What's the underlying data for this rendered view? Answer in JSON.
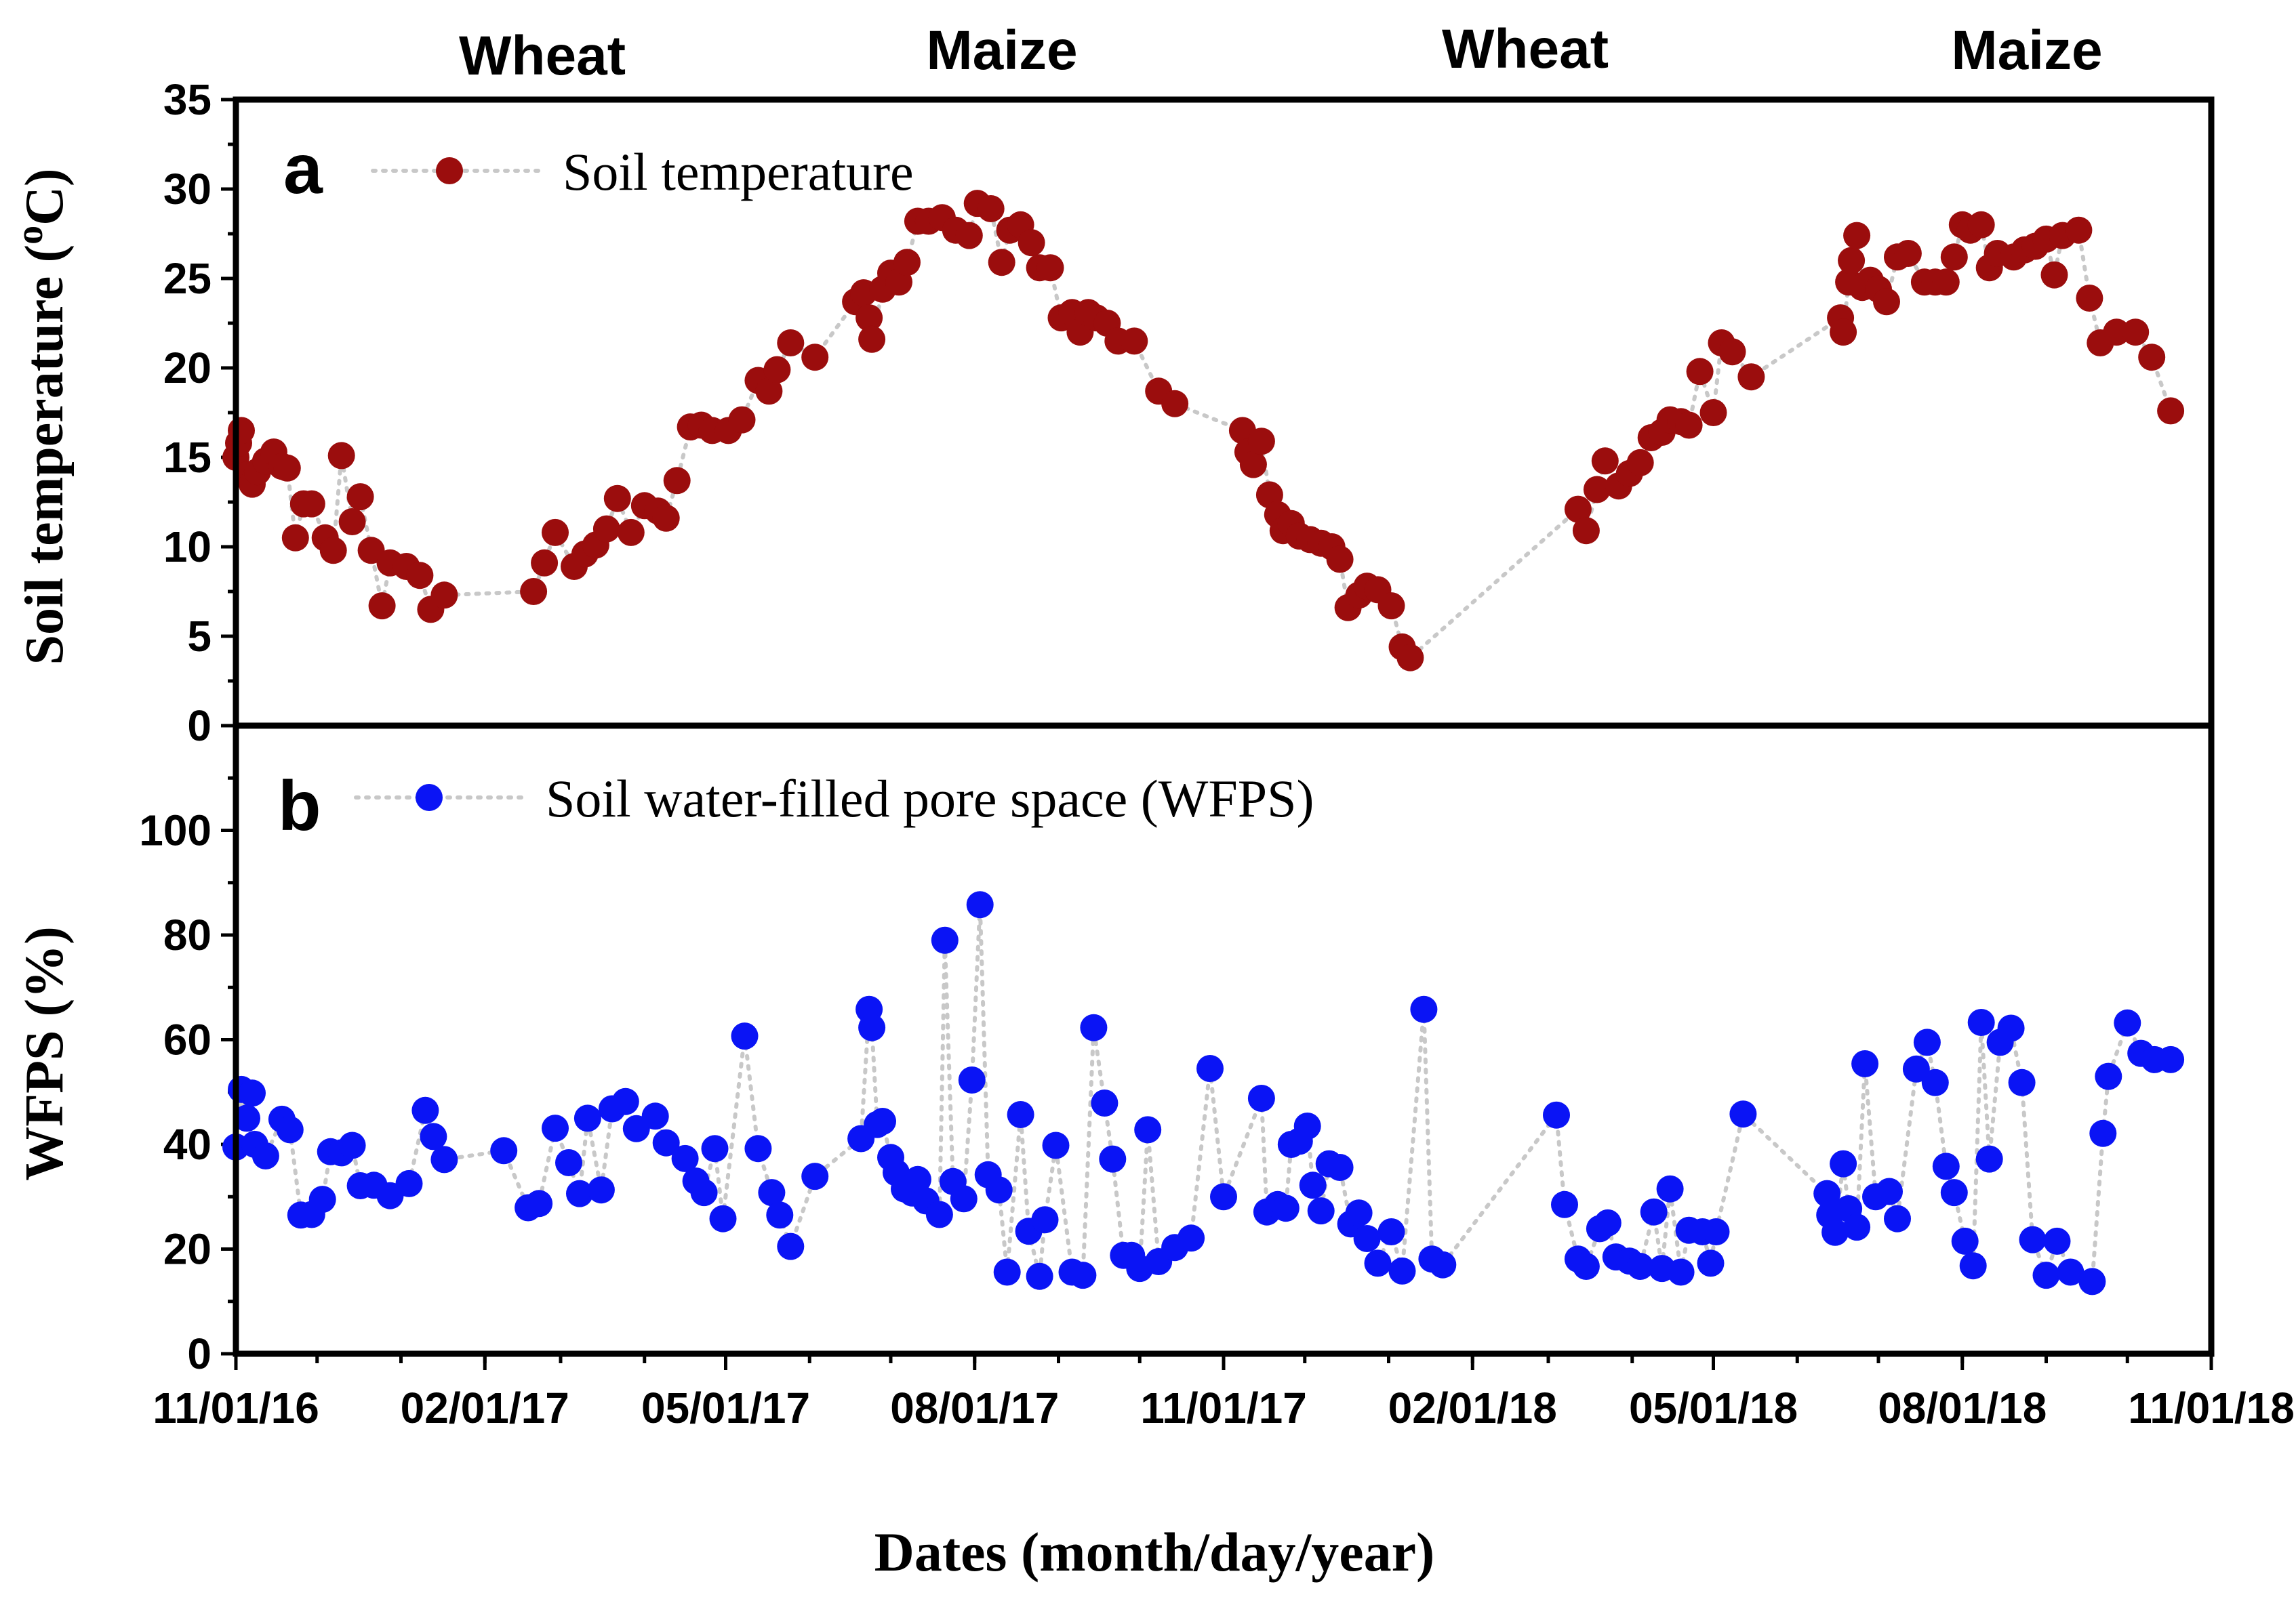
{
  "crop_labels": [
    "Wheat",
    "Maize",
    "Wheat",
    "Maize"
  ],
  "x_ticks": [
    "11/01/16",
    "02/01/17",
    "05/01/17",
    "08/01/17",
    "11/01/17",
    "02/01/18",
    "05/01/18",
    "08/01/18",
    "11/01/18"
  ],
  "x_axis_label": "Dates (month/day/year)",
  "chart_data": [
    {
      "panel": "a",
      "type": "scatter",
      "series": [
        {
          "name": "Soil temperature",
          "color": "#9b0d0d"
        }
      ],
      "ylabel": "Soil temperature (oC)",
      "ylabel_main": "Soil temperature (",
      "ylabel_sup": "o",
      "ylabel_end": "C)",
      "ylim": [
        0,
        35
      ],
      "yticks": [
        "0",
        "5",
        "10",
        "15",
        "20",
        "25",
        "30",
        "35"
      ],
      "xlim": [
        "2016-11-01",
        "2018-11-01"
      ],
      "line_style": "dotted grey connector",
      "points": [
        [
          "2016-11-01",
          15.0
        ],
        [
          "2016-11-02",
          15.8
        ],
        [
          "2016-11-03",
          16.5
        ],
        [
          "2016-11-05",
          14.0
        ],
        [
          "2016-11-07",
          13.5
        ],
        [
          "2016-11-09",
          14.2
        ],
        [
          "2016-11-12",
          14.8
        ],
        [
          "2016-11-15",
          15.3
        ],
        [
          "2016-11-18",
          14.5
        ],
        [
          "2016-11-20",
          14.4
        ],
        [
          "2016-11-23",
          10.5
        ],
        [
          "2016-11-26",
          12.4
        ],
        [
          "2016-11-29",
          12.4
        ],
        [
          "2016-12-04",
          10.5
        ],
        [
          "2016-12-07",
          9.8
        ],
        [
          "2016-12-10",
          15.1
        ],
        [
          "2016-12-14",
          11.4
        ],
        [
          "2016-12-17",
          12.8
        ],
        [
          "2016-12-21",
          9.8
        ],
        [
          "2016-12-25",
          6.7
        ],
        [
          "2016-12-28",
          9.1
        ],
        [
          "2017-01-03",
          8.9
        ],
        [
          "2017-01-08",
          8.4
        ],
        [
          "2017-01-12",
          6.5
        ],
        [
          "2017-01-17",
          7.3
        ],
        [
          "2017-02-19",
          7.5
        ],
        [
          "2017-02-23",
          9.1
        ],
        [
          "2017-02-27",
          10.8
        ],
        [
          "2017-03-06",
          8.9
        ],
        [
          "2017-03-10",
          9.6
        ],
        [
          "2017-03-14",
          10.1
        ],
        [
          "2017-03-18",
          11.0
        ],
        [
          "2017-03-22",
          12.7
        ],
        [
          "2017-03-27",
          10.8
        ],
        [
          "2017-04-01",
          12.3
        ],
        [
          "2017-04-06",
          12.0
        ],
        [
          "2017-04-09",
          11.6
        ],
        [
          "2017-04-13",
          13.7
        ],
        [
          "2017-04-18",
          16.7
        ],
        [
          "2017-04-22",
          16.8
        ],
        [
          "2017-04-26",
          16.5
        ],
        [
          "2017-05-02",
          16.5
        ],
        [
          "2017-05-07",
          17.1
        ],
        [
          "2017-05-13",
          19.3
        ],
        [
          "2017-05-17",
          18.7
        ],
        [
          "2017-05-20",
          19.9
        ],
        [
          "2017-05-25",
          21.4
        ],
        [
          "2017-06-03",
          20.6
        ],
        [
          "2017-06-18",
          23.7
        ],
        [
          "2017-06-21",
          24.2
        ],
        [
          "2017-06-23",
          22.8
        ],
        [
          "2017-06-24",
          21.6
        ],
        [
          "2017-06-28",
          24.4
        ],
        [
          "2017-07-01",
          25.3
        ],
        [
          "2017-07-04",
          24.8
        ],
        [
          "2017-07-07",
          25.9
        ],
        [
          "2017-07-11",
          28.2
        ],
        [
          "2017-07-15",
          28.2
        ],
        [
          "2017-07-20",
          28.4
        ],
        [
          "2017-07-25",
          27.7
        ],
        [
          "2017-07-30",
          27.4
        ],
        [
          "2017-08-02",
          29.2
        ],
        [
          "2017-08-07",
          28.9
        ],
        [
          "2017-08-11",
          25.9
        ],
        [
          "2017-08-14",
          27.7
        ],
        [
          "2017-08-18",
          28.0
        ],
        [
          "2017-08-22",
          27.0
        ],
        [
          "2017-08-25",
          25.6
        ],
        [
          "2017-08-29",
          25.6
        ],
        [
          "2017-09-02",
          22.8
        ],
        [
          "2017-09-06",
          23.1
        ],
        [
          "2017-09-09",
          22.0
        ],
        [
          "2017-09-12",
          23.1
        ],
        [
          "2017-09-15",
          22.8
        ],
        [
          "2017-09-19",
          22.5
        ],
        [
          "2017-09-23",
          21.5
        ],
        [
          "2017-09-29",
          21.5
        ],
        [
          "2017-10-08",
          18.7
        ],
        [
          "2017-10-14",
          18.0
        ],
        [
          "2017-11-08",
          16.5
        ],
        [
          "2017-11-10",
          15.3
        ],
        [
          "2017-11-12",
          14.6
        ],
        [
          "2017-11-15",
          15.9
        ],
        [
          "2017-11-18",
          12.9
        ],
        [
          "2017-11-21",
          11.8
        ],
        [
          "2017-11-23",
          10.9
        ],
        [
          "2017-11-26",
          11.3
        ],
        [
          "2017-11-29",
          10.6
        ],
        [
          "2017-12-03",
          10.4
        ],
        [
          "2017-12-07",
          10.2
        ],
        [
          "2017-12-11",
          10.0
        ],
        [
          "2017-12-14",
          9.3
        ],
        [
          "2017-12-17",
          6.6
        ],
        [
          "2017-12-21",
          7.3
        ],
        [
          "2017-12-24",
          7.8
        ],
        [
          "2017-12-28",
          7.6
        ],
        [
          "2018-01-02",
          6.7
        ],
        [
          "2018-01-06",
          4.4
        ],
        [
          "2018-01-09",
          3.8
        ],
        [
          "2018-03-12",
          12.1
        ],
        [
          "2018-03-15",
          10.9
        ],
        [
          "2018-03-19",
          13.2
        ],
        [
          "2018-03-22",
          14.8
        ],
        [
          "2018-03-27",
          13.4
        ],
        [
          "2018-03-31",
          14.1
        ],
        [
          "2018-04-04",
          14.7
        ],
        [
          "2018-04-08",
          16.1
        ],
        [
          "2018-04-12",
          16.4
        ],
        [
          "2018-04-15",
          17.1
        ],
        [
          "2018-04-19",
          17.0
        ],
        [
          "2018-04-22",
          16.8
        ],
        [
          "2018-04-26",
          19.8
        ],
        [
          "2018-05-01",
          17.5
        ],
        [
          "2018-05-04",
          21.4
        ],
        [
          "2018-05-08",
          20.9
        ],
        [
          "2018-05-15",
          19.5
        ],
        [
          "2018-06-17",
          22.8
        ],
        [
          "2018-06-18",
          22.0
        ],
        [
          "2018-06-20",
          24.8
        ],
        [
          "2018-06-21",
          26.0
        ],
        [
          "2018-06-23",
          27.4
        ],
        [
          "2018-06-25",
          24.5
        ],
        [
          "2018-06-28",
          24.9
        ],
        [
          "2018-07-01",
          24.4
        ],
        [
          "2018-07-04",
          23.7
        ],
        [
          "2018-07-08",
          26.2
        ],
        [
          "2018-07-12",
          26.4
        ],
        [
          "2018-07-18",
          24.8
        ],
        [
          "2018-07-22",
          24.8
        ],
        [
          "2018-07-26",
          24.8
        ],
        [
          "2018-07-29",
          26.2
        ],
        [
          "2018-08-01",
          28.0
        ],
        [
          "2018-08-04",
          27.7
        ],
        [
          "2018-08-08",
          28.0
        ],
        [
          "2018-08-11",
          25.6
        ],
        [
          "2018-08-14",
          26.4
        ],
        [
          "2018-08-20",
          26.2
        ],
        [
          "2018-08-24",
          26.6
        ],
        [
          "2018-08-28",
          26.8
        ],
        [
          "2018-09-01",
          27.2
        ],
        [
          "2018-09-04",
          25.2
        ],
        [
          "2018-09-07",
          27.4
        ],
        [
          "2018-09-13",
          27.7
        ],
        [
          "2018-09-17",
          23.9
        ],
        [
          "2018-09-21",
          21.4
        ],
        [
          "2018-09-27",
          22.0
        ],
        [
          "2018-10-04",
          22.0
        ],
        [
          "2018-10-10",
          20.6
        ],
        [
          "2018-10-17",
          17.6
        ]
      ]
    },
    {
      "panel": "b",
      "type": "scatter",
      "series": [
        {
          "name": "Soil water-filled pore space (WFPS)",
          "color": "#0a14f5"
        }
      ],
      "ylabel": "WFPS (%)",
      "ylim": [
        0,
        120
      ],
      "yticks": [
        "0",
        "20",
        "40",
        "60",
        "80",
        "100"
      ],
      "xlim": [
        "2016-11-01",
        "2018-11-01"
      ],
      "line_style": "dotted grey connector",
      "points": [
        [
          "2016-11-01",
          39.5
        ],
        [
          "2016-11-03",
          50.5
        ],
        [
          "2016-11-05",
          45.0
        ],
        [
          "2016-11-07",
          49.8
        ],
        [
          "2016-11-08",
          40.0
        ],
        [
          "2016-11-12",
          37.8
        ],
        [
          "2016-11-18",
          44.8
        ],
        [
          "2016-11-21",
          42.8
        ],
        [
          "2016-11-25",
          26.5
        ],
        [
          "2016-11-29",
          26.6
        ],
        [
          "2016-12-03",
          29.5
        ],
        [
          "2016-12-06",
          38.6
        ],
        [
          "2016-12-10",
          38.4
        ],
        [
          "2016-12-14",
          39.8
        ],
        [
          "2016-12-17",
          32.1
        ],
        [
          "2016-12-22",
          32.2
        ],
        [
          "2016-12-28",
          30.2
        ],
        [
          "2017-01-04",
          32.5
        ],
        [
          "2017-01-10",
          46.5
        ],
        [
          "2017-01-13",
          41.5
        ],
        [
          "2017-01-17",
          37.1
        ],
        [
          "2017-02-08",
          38.8
        ],
        [
          "2017-02-17",
          27.9
        ],
        [
          "2017-02-21",
          28.7
        ],
        [
          "2017-02-27",
          43.1
        ],
        [
          "2017-03-04",
          36.5
        ],
        [
          "2017-03-08",
          30.6
        ],
        [
          "2017-03-11",
          45.0
        ],
        [
          "2017-03-16",
          31.3
        ],
        [
          "2017-03-20",
          46.8
        ],
        [
          "2017-03-25",
          48.2
        ],
        [
          "2017-03-29",
          43.0
        ],
        [
          "2017-04-05",
          45.4
        ],
        [
          "2017-04-09",
          40.3
        ],
        [
          "2017-04-16",
          37.3
        ],
        [
          "2017-04-20",
          33.0
        ],
        [
          "2017-04-23",
          30.8
        ],
        [
          "2017-04-27",
          39.2
        ],
        [
          "2017-04-30",
          25.8
        ],
        [
          "2017-05-08",
          60.7
        ],
        [
          "2017-05-13",
          39.2
        ],
        [
          "2017-05-18",
          30.8
        ],
        [
          "2017-05-21",
          26.5
        ],
        [
          "2017-05-25",
          20.5
        ],
        [
          "2017-06-03",
          33.9
        ],
        [
          "2017-06-20",
          41.1
        ],
        [
          "2017-06-23",
          65.8
        ],
        [
          "2017-06-24",
          62.3
        ],
        [
          "2017-06-26",
          43.8
        ],
        [
          "2017-06-28",
          44.4
        ],
        [
          "2017-07-01",
          37.5
        ],
        [
          "2017-07-03",
          34.6
        ],
        [
          "2017-07-06",
          31.5
        ],
        [
          "2017-07-09",
          30.7
        ],
        [
          "2017-07-11",
          33.3
        ],
        [
          "2017-07-14",
          29.2
        ],
        [
          "2017-07-19",
          26.6
        ],
        [
          "2017-07-21",
          79.0
        ],
        [
          "2017-07-24",
          32.9
        ],
        [
          "2017-07-28",
          29.6
        ],
        [
          "2017-07-31",
          52.3
        ],
        [
          "2017-08-03",
          85.8
        ],
        [
          "2017-08-06",
          34.2
        ],
        [
          "2017-08-10",
          31.3
        ],
        [
          "2017-08-13",
          15.6
        ],
        [
          "2017-08-18",
          45.7
        ],
        [
          "2017-08-21",
          23.4
        ],
        [
          "2017-08-25",
          14.8
        ],
        [
          "2017-08-27",
          25.6
        ],
        [
          "2017-08-31",
          39.8
        ],
        [
          "2017-09-06",
          15.6
        ],
        [
          "2017-09-10",
          15.0
        ],
        [
          "2017-09-14",
          62.3
        ],
        [
          "2017-09-18",
          47.9
        ],
        [
          "2017-09-21",
          37.2
        ],
        [
          "2017-09-25",
          18.8
        ],
        [
          "2017-09-28",
          18.8
        ],
        [
          "2017-10-01",
          16.3
        ],
        [
          "2017-10-04",
          42.8
        ],
        [
          "2017-10-08",
          17.6
        ],
        [
          "2017-10-14",
          20.3
        ],
        [
          "2017-10-20",
          22.1
        ],
        [
          "2017-10-27",
          54.5
        ],
        [
          "2017-11-01",
          30.0
        ],
        [
          "2017-11-15",
          48.8
        ],
        [
          "2017-11-17",
          27.1
        ],
        [
          "2017-11-21",
          28.5
        ],
        [
          "2017-11-24",
          27.8
        ],
        [
          "2017-11-26",
          40.0
        ],
        [
          "2017-11-29",
          40.6
        ],
        [
          "2017-12-02",
          43.5
        ],
        [
          "2017-12-04",
          32.2
        ],
        [
          "2017-12-07",
          27.3
        ],
        [
          "2017-12-10",
          36.3
        ],
        [
          "2017-12-14",
          35.6
        ],
        [
          "2017-12-18",
          24.8
        ],
        [
          "2017-12-21",
          26.9
        ],
        [
          "2017-12-24",
          22.0
        ],
        [
          "2017-12-28",
          17.3
        ],
        [
          "2018-01-02",
          23.3
        ],
        [
          "2018-01-06",
          15.8
        ],
        [
          "2018-01-14",
          65.8
        ],
        [
          "2018-01-17",
          18.1
        ],
        [
          "2018-01-21",
          17.0
        ],
        [
          "2018-03-04",
          45.6
        ],
        [
          "2018-03-07",
          28.5
        ],
        [
          "2018-03-12",
          18.1
        ],
        [
          "2018-03-15",
          16.7
        ],
        [
          "2018-03-20",
          23.9
        ],
        [
          "2018-03-23",
          25.0
        ],
        [
          "2018-03-26",
          18.5
        ],
        [
          "2018-03-31",
          17.7
        ],
        [
          "2018-04-04",
          16.7
        ],
        [
          "2018-04-09",
          27.1
        ],
        [
          "2018-04-12",
          16.3
        ],
        [
          "2018-04-15",
          31.5
        ],
        [
          "2018-04-19",
          15.6
        ],
        [
          "2018-04-22",
          23.6
        ],
        [
          "2018-04-27",
          23.3
        ],
        [
          "2018-04-30",
          17.3
        ],
        [
          "2018-05-02",
          23.3
        ],
        [
          "2018-05-12",
          45.8
        ],
        [
          "2018-06-12",
          30.6
        ],
        [
          "2018-06-13",
          26.5
        ],
        [
          "2018-06-15",
          23.2
        ],
        [
          "2018-06-18",
          36.3
        ],
        [
          "2018-06-20",
          27.7
        ],
        [
          "2018-06-23",
          24.2
        ],
        [
          "2018-06-26",
          55.4
        ],
        [
          "2018-06-30",
          30.0
        ],
        [
          "2018-07-05",
          31.0
        ],
        [
          "2018-07-08",
          25.8
        ],
        [
          "2018-07-15",
          54.4
        ],
        [
          "2018-07-19",
          59.5
        ],
        [
          "2018-07-22",
          51.8
        ],
        [
          "2018-07-26",
          35.8
        ],
        [
          "2018-07-29",
          30.8
        ],
        [
          "2018-08-02",
          21.5
        ],
        [
          "2018-08-05",
          16.8
        ],
        [
          "2018-08-08",
          63.3
        ],
        [
          "2018-08-11",
          37.2
        ],
        [
          "2018-08-15",
          59.5
        ],
        [
          "2018-08-19",
          62.2
        ],
        [
          "2018-08-23",
          51.8
        ],
        [
          "2018-08-27",
          21.8
        ],
        [
          "2018-09-01",
          15.0
        ],
        [
          "2018-09-05",
          21.5
        ],
        [
          "2018-09-10",
          15.6
        ],
        [
          "2018-09-18",
          13.8
        ],
        [
          "2018-09-22",
          42.1
        ],
        [
          "2018-09-24",
          53.0
        ],
        [
          "2018-10-01",
          63.2
        ],
        [
          "2018-10-06",
          57.4
        ],
        [
          "2018-10-11",
          56.2
        ],
        [
          "2018-10-17",
          56.2
        ]
      ]
    }
  ],
  "panels": {
    "a": {
      "letter": "a",
      "legend": "Soil temperature"
    },
    "b": {
      "letter": "b",
      "legend": "Soil water-filled pore space (WFPS)"
    }
  }
}
